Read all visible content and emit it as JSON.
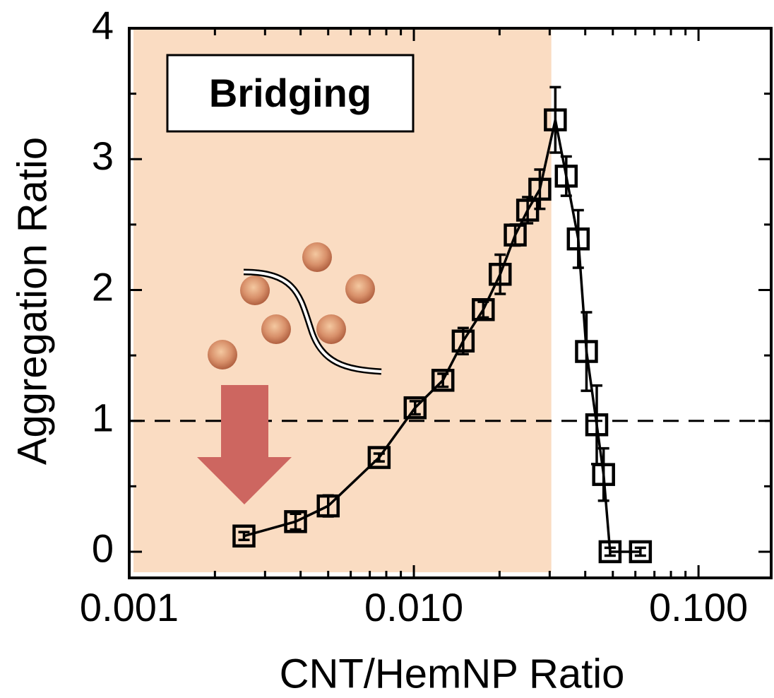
{
  "chart_data": {
    "type": "line",
    "xlabel": "CNT/HemNP Ratio",
    "ylabel": "Aggregation Ratio",
    "annotation": "Bridging",
    "xscale": "log",
    "xlim": [
      0.001,
      0.18
    ],
    "ylim": [
      -0.2,
      4
    ],
    "xticks": [
      0.001,
      {
        "value": 0.01,
        "label": "0.010"
      },
      {
        "value": 0.1,
        "label": "0.100"
      }
    ],
    "xminorticks": [
      0.002,
      0.003,
      0.004,
      0.005,
      0.006,
      0.007,
      0.008,
      0.009,
      0.02,
      0.03,
      0.04,
      0.05,
      0.06,
      0.07,
      0.08,
      0.09
    ],
    "yticks": [
      0,
      1,
      2,
      3,
      4
    ],
    "yminorticks": [
      0.5,
      1.5,
      2.5,
      3.5
    ],
    "reference_line": 1,
    "highlight_xlim": [
      0.001,
      0.0304
    ],
    "highlight_color": "#fadcc2",
    "series": [
      {
        "color": "#000000",
        "x": [
          0.00253,
          0.00384,
          0.005,
          0.00755,
          0.0101,
          0.01265,
          0.0149,
          0.01753,
          0.0201,
          0.0227,
          0.0251,
          0.0277,
          0.0314,
          0.0343,
          0.0378,
          0.0404,
          0.0439,
          0.0464,
          0.0489,
          0.0625
        ],
        "values": [
          0.12,
          0.23,
          0.35,
          0.72,
          1.1,
          1.31,
          1.61,
          1.85,
          2.12,
          2.42,
          2.61,
          2.77,
          3.3,
          2.87,
          2.39,
          1.53,
          0.97,
          0.59,
          0.0,
          0.0
        ],
        "errors": [
          0.03,
          0.06,
          0.08,
          0.03,
          0.05,
          0.05,
          0.1,
          0.06,
          0.15,
          0.08,
          0.1,
          0.15,
          0.25,
          0.15,
          0.22,
          0.3,
          0.3,
          0.2,
          0.03,
          0.03
        ]
      }
    ]
  }
}
